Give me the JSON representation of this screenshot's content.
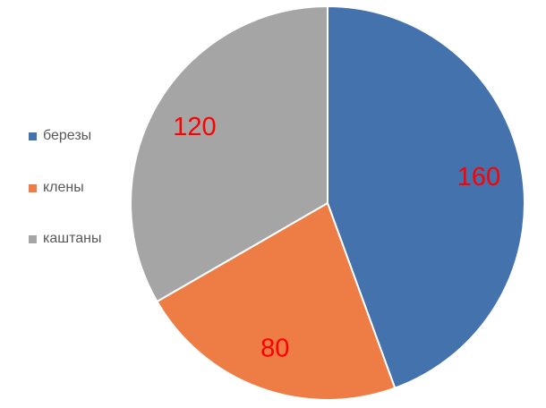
{
  "chart_data": {
    "type": "pie",
    "categories": [
      "березы",
      "клены",
      "каштаны"
    ],
    "values": [
      160,
      80,
      120
    ],
    "colors": [
      "#4472AC",
      "#ED7D44",
      "#A5A5A5"
    ],
    "label_color": "#FF0000",
    "start_angle": "top, clockwise",
    "legend_position": "left"
  }
}
